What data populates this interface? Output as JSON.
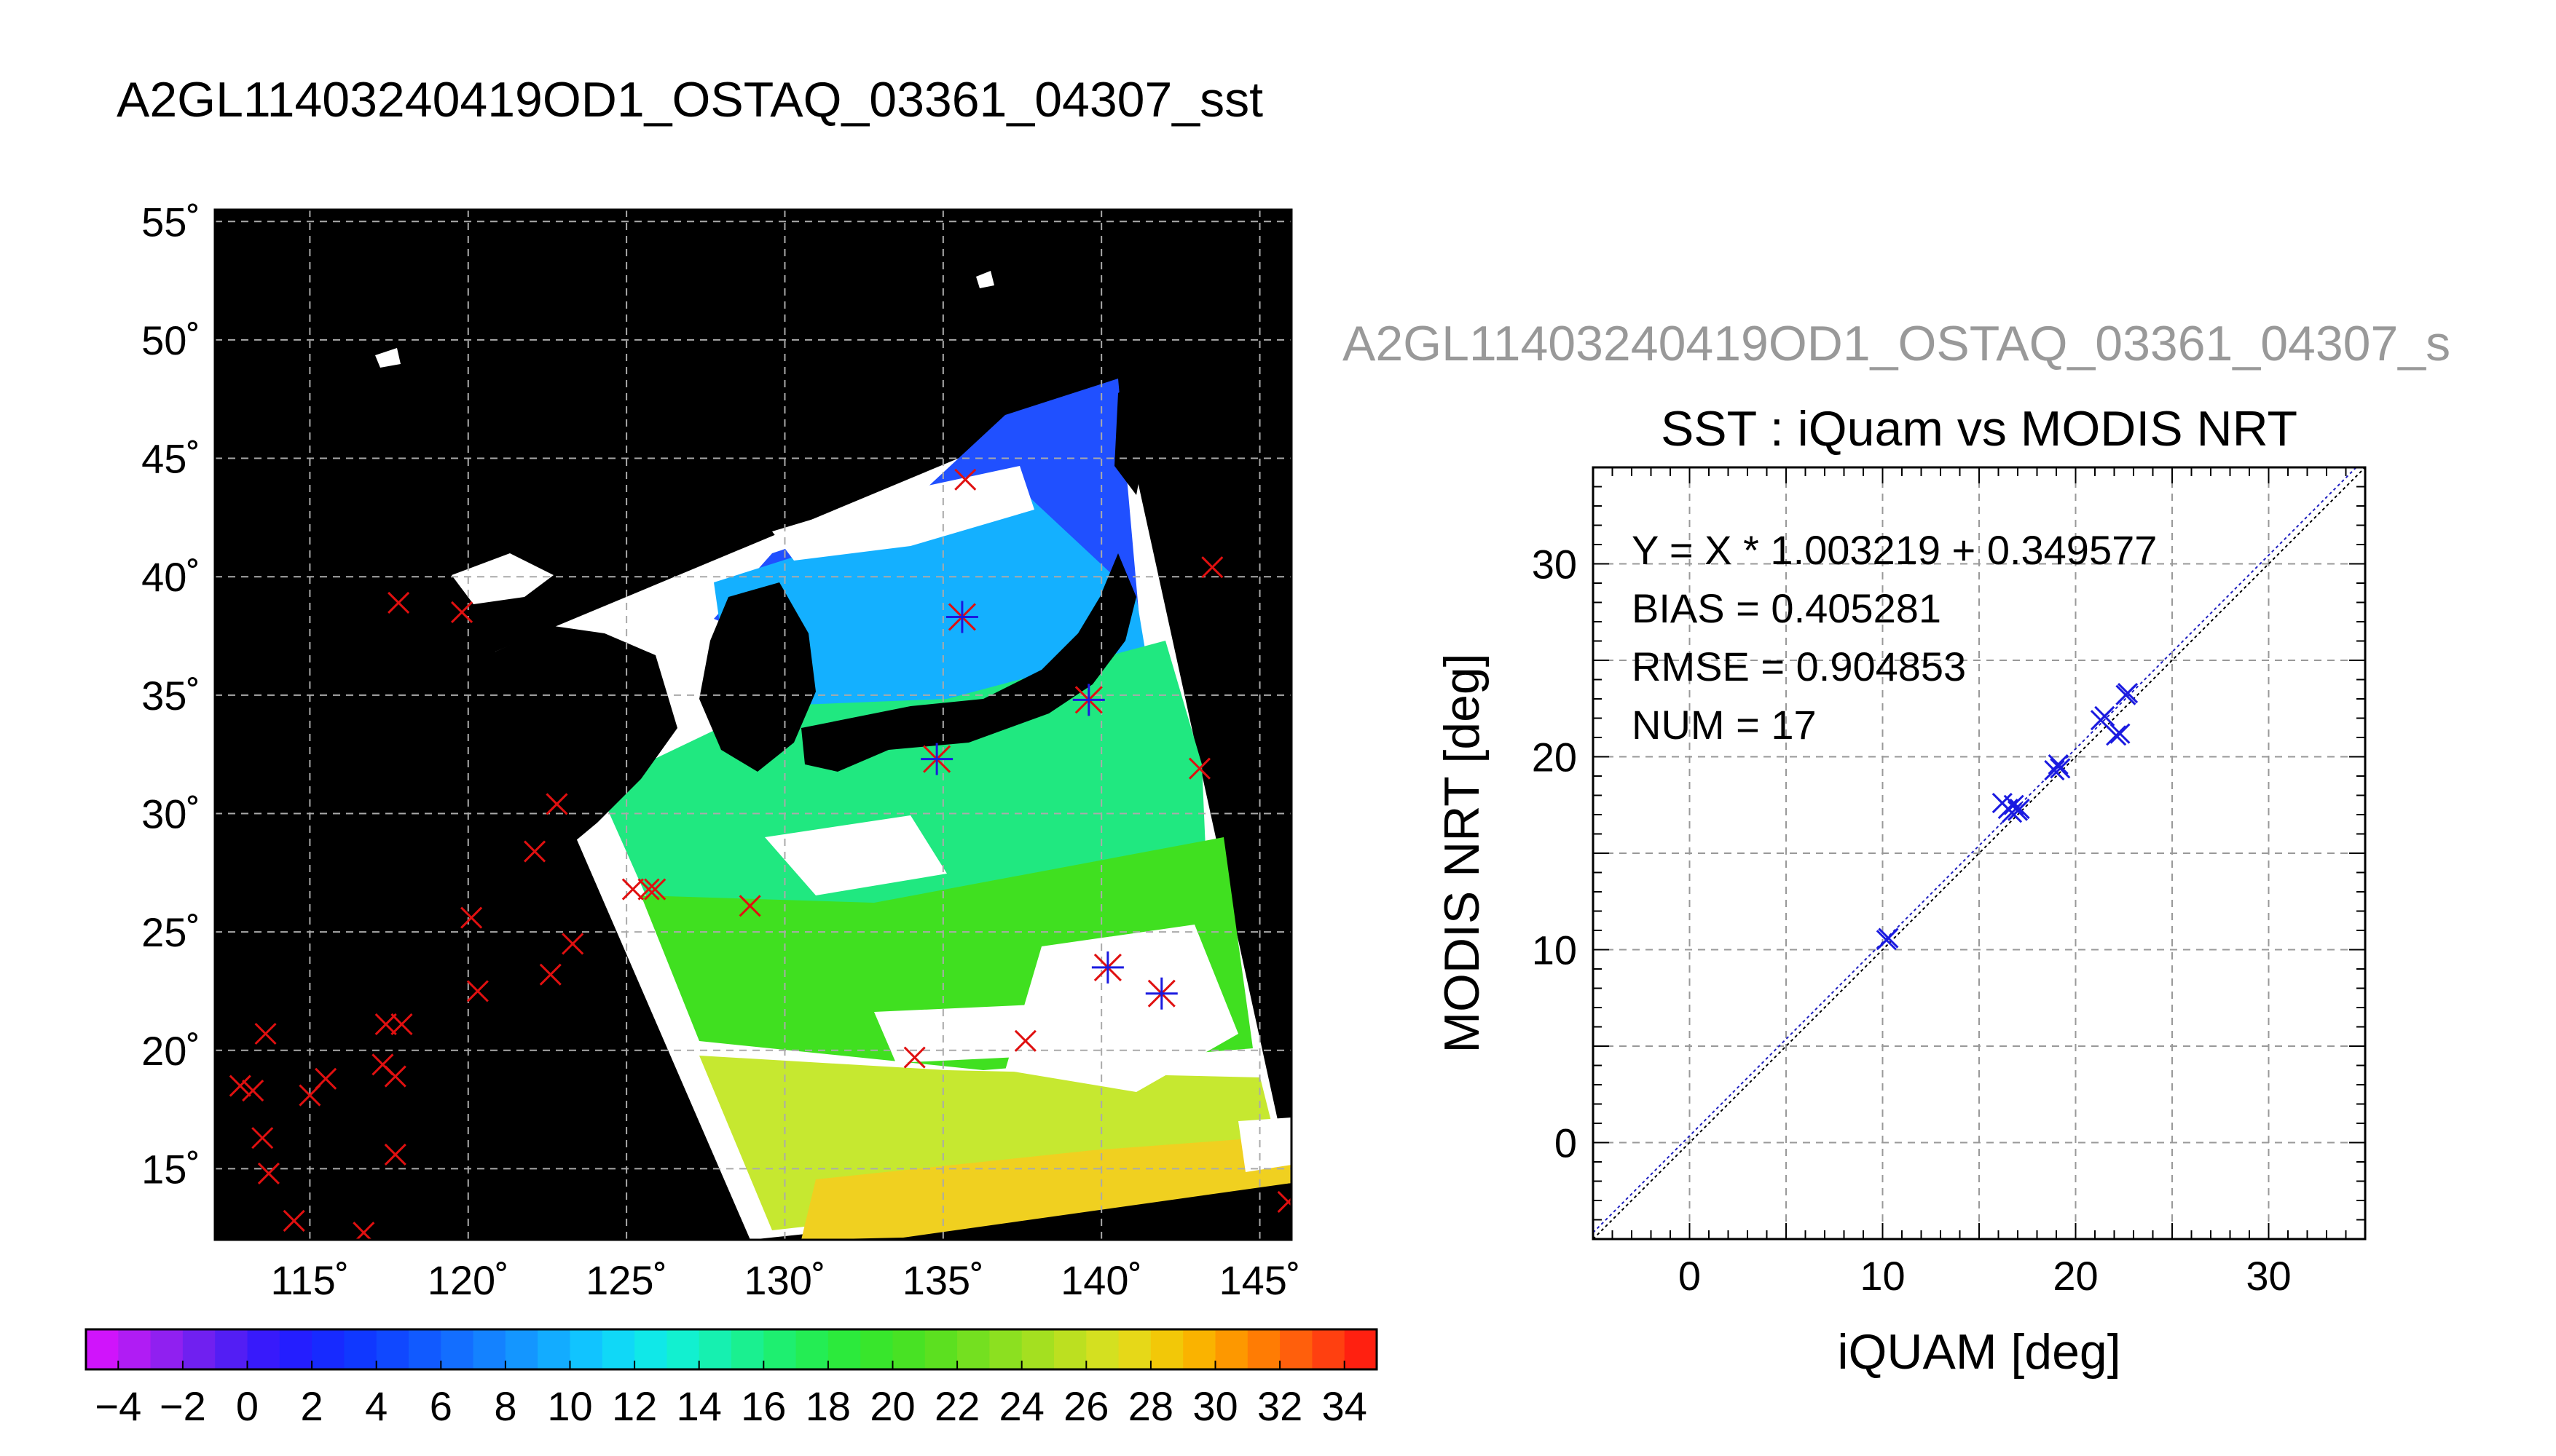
{
  "page_title": "A2GL11403240419OD1_OSTAQ_03361_04307_sst",
  "chart_data": [
    {
      "type": "map",
      "title": "A2GL11403240419OD1_OSTAQ_03361_04307_sst",
      "xlim": [
        112,
        146
      ],
      "ylim": [
        12,
        55.5
      ],
      "lon_ticks": [
        115,
        120,
        125,
        130,
        135,
        140,
        145
      ],
      "lat_ticks": [
        15,
        20,
        25,
        30,
        35,
        40,
        45,
        50,
        55
      ],
      "lon_tick_labels": [
        "115˚",
        "120˚",
        "125˚",
        "130˚",
        "135˚",
        "140˚",
        "145˚"
      ],
      "lat_tick_labels": [
        "15˚",
        "20˚",
        "25˚",
        "30˚",
        "35˚",
        "40˚",
        "45˚",
        "50˚",
        "55˚"
      ],
      "grid": true,
      "background_color": "#000000",
      "marker_color_unmatched": "#e01010",
      "marker_color_matched": "#1a1ae0",
      "red_markers": [
        [
          112.8,
          18.5
        ],
        [
          113.2,
          18.3
        ],
        [
          113.6,
          20.7
        ],
        [
          113.5,
          16.3
        ],
        [
          113.7,
          14.8
        ],
        [
          114.5,
          12.8
        ],
        [
          115.0,
          18.1
        ],
        [
          115.5,
          18.8
        ],
        [
          116.7,
          12.3
        ],
        [
          117.3,
          19.4
        ],
        [
          117.4,
          21.1
        ],
        [
          117.7,
          18.9
        ],
        [
          117.9,
          21.1
        ],
        [
          117.7,
          15.6
        ],
        [
          117.8,
          38.9
        ],
        [
          119.8,
          38.5
        ],
        [
          120.1,
          25.6
        ],
        [
          120.3,
          22.5
        ],
        [
          122.1,
          28.4
        ],
        [
          122.6,
          23.2
        ],
        [
          122.8,
          30.4
        ],
        [
          123.3,
          24.5
        ],
        [
          125.2,
          26.8
        ],
        [
          125.7,
          26.8
        ],
        [
          125.9,
          26.8
        ],
        [
          128.9,
          26.1
        ],
        [
          134.1,
          19.7
        ],
        [
          135.7,
          44.1
        ],
        [
          137.6,
          20.4
        ],
        [
          143.1,
          31.9
        ],
        [
          143.5,
          40.4
        ],
        [
          145.9,
          13.6
        ]
      ],
      "asterisk_markers": [
        [
          134.8,
          32.3
        ],
        [
          135.6,
          38.3
        ],
        [
          139.6,
          34.8
        ],
        [
          140.2,
          23.5
        ],
        [
          141.9,
          22.4
        ]
      ],
      "colorbar": {
        "min": -5,
        "max": 35,
        "tick_values": [
          -4,
          -2,
          0,
          2,
          4,
          6,
          8,
          10,
          12,
          14,
          16,
          18,
          20,
          22,
          24,
          26,
          28,
          30,
          32,
          34
        ],
        "tick_labels": [
          "−4",
          "−2",
          "0",
          "2",
          "4",
          "6",
          "8",
          "10",
          "12",
          "14",
          "16",
          "18",
          "20",
          "22",
          "24",
          "26",
          "28",
          "30",
          "32",
          "34"
        ]
      }
    },
    {
      "type": "scatter",
      "heading": "A2GL11403240419OD1_OSTAQ_03361_04307_s",
      "title": "SST : iQuam vs MODIS NRT",
      "xlabel": "iQUAM [deg]",
      "ylabel": "MODIS NRT [deg]",
      "xlim": [
        -5,
        35
      ],
      "ylim": [
        -5,
        35
      ],
      "x_ticks": [
        0,
        10,
        20,
        30
      ],
      "y_ticks": [
        0,
        10,
        20,
        30
      ],
      "x_tick_labels": [
        "0",
        "10",
        "20",
        "30"
      ],
      "y_tick_labels": [
        "0",
        "10",
        "20",
        "30"
      ],
      "grid": true,
      "marker": "x",
      "marker_color": "#1a1ae0",
      "fit": {
        "slope": 1.003219,
        "intercept": 0.349577
      },
      "stats": [
        "Y = X * 1.003219 + 0.349577",
        "BIAS = 0.405281",
        "RMSE = 0.904853",
        "NUM = 17"
      ],
      "x": [
        10.2,
        10.3,
        16.2,
        16.5,
        16.7,
        16.8,
        17.0,
        17.1,
        18.9,
        19.1,
        19.2,
        21.3,
        21.5,
        22.1,
        22.3,
        22.6,
        22.7
      ],
      "y": [
        10.5,
        10.6,
        17.6,
        17.3,
        17.1,
        17.5,
        17.2,
        17.3,
        19.3,
        19.6,
        19.4,
        21.9,
        22.1,
        21.1,
        21.2,
        23.2,
        23.3
      ]
    }
  ]
}
